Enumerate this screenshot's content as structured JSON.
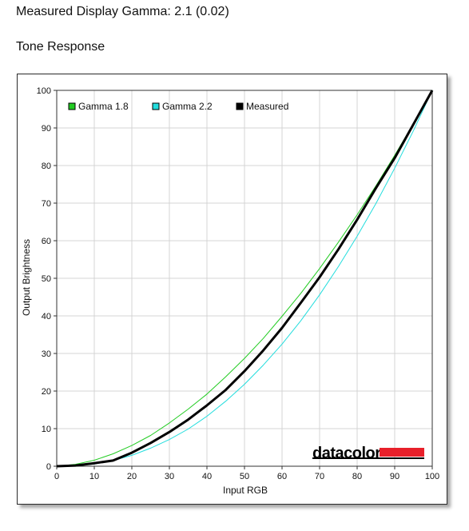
{
  "header": {
    "title": "Measured Display Gamma: 2.1 (0.02)",
    "subtitle": "Tone Response"
  },
  "brand": {
    "logo_text": "datacolor",
    "accent_color": "#e8202a"
  },
  "chart_data": {
    "type": "line",
    "title": "",
    "xlabel": "Input RGB",
    "ylabel": "Output Brightness",
    "xlim": [
      0,
      100
    ],
    "ylim": [
      0,
      100
    ],
    "xticks": [
      0,
      10,
      20,
      30,
      40,
      50,
      60,
      70,
      80,
      90,
      100
    ],
    "yticks": [
      0,
      10,
      20,
      30,
      40,
      50,
      60,
      70,
      80,
      90,
      100
    ],
    "grid": true,
    "legend_position": "top-left",
    "x": [
      0,
      5,
      10,
      15,
      20,
      25,
      30,
      35,
      40,
      45,
      50,
      55,
      60,
      65,
      70,
      75,
      80,
      85,
      90,
      95,
      100
    ],
    "series": [
      {
        "name": "Gamma 1.8",
        "color": "#22cc22",
        "width": 1,
        "values": [
          0,
          0.5,
          1.6,
          3.3,
          5.5,
          8.2,
          11.5,
          15.2,
          19.2,
          23.8,
          28.7,
          34.0,
          39.9,
          46.0,
          52.6,
          59.6,
          66.9,
          74.6,
          82.7,
          91.2,
          100
        ]
      },
      {
        "name": "Gamma 2.2",
        "color": "#22dddd",
        "width": 1,
        "values": [
          0,
          0.1,
          0.6,
          1.5,
          2.9,
          4.8,
          7.1,
          9.9,
          13.3,
          17.3,
          21.8,
          26.9,
          32.5,
          38.7,
          45.6,
          53.1,
          61.2,
          69.9,
          79.3,
          89.3,
          100
        ]
      },
      {
        "name": "Measured",
        "color": "#000000",
        "width": 3,
        "values": [
          0,
          0.2,
          0.8,
          1.5,
          3.6,
          6.2,
          9.1,
          12.4,
          16.2,
          20.3,
          25.3,
          30.8,
          36.8,
          43.5,
          50.3,
          57.7,
          65.6,
          74.0,
          82.0,
          91.0,
          100
        ]
      }
    ]
  }
}
